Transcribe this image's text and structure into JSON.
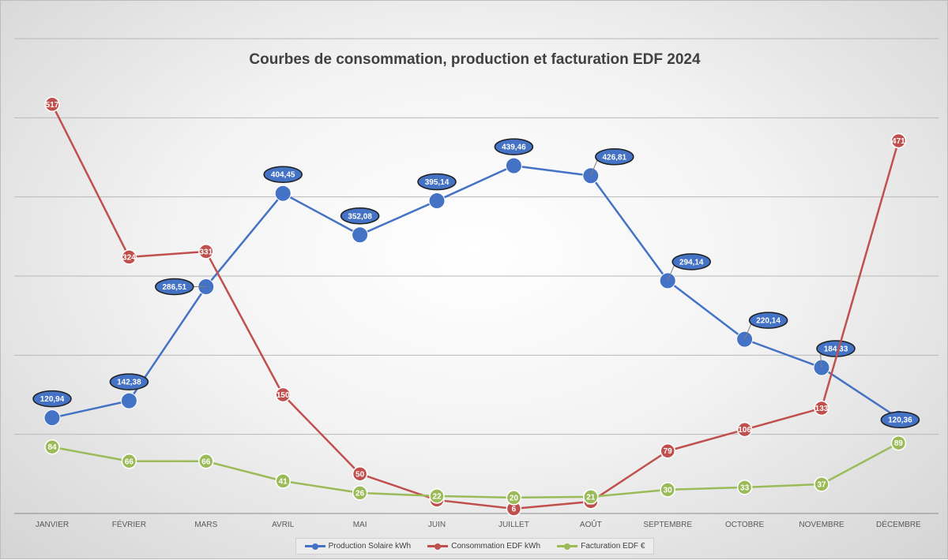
{
  "chart_data": {
    "type": "line",
    "title": "Courbes de consommation, production et facturation EDF 2024",
    "categories": [
      "JANVIER",
      "FÉVRIER",
      "MARS",
      "AVRIL",
      "MAI",
      "JUIN",
      "JUILLET",
      "AOÛT",
      "SEPTEMBRE",
      "OCTOBRE",
      "NOVEMBRE",
      "DÉCEMBRE"
    ],
    "series": [
      {
        "name": "Production Solaire kWh",
        "color": "#4472c4",
        "values": [
          120.94,
          142.38,
          286.51,
          404.45,
          352.08,
          395.14,
          439.46,
          426.81,
          294.14,
          220.14,
          184.33,
          120.36
        ],
        "labels": [
          "120,94",
          "142,38",
          "286,51",
          "404,45",
          "352,08",
          "395,14",
          "439,46",
          "426,81",
          "294,14",
          "220,14",
          "184,33",
          "120,36"
        ]
      },
      {
        "name": "Consommation EDF kWh",
        "color": "#c0504d",
        "values": [
          517,
          324,
          331,
          150,
          50,
          17,
          6,
          15,
          79,
          106,
          133,
          471
        ],
        "labels": [
          "517",
          "324",
          "331",
          "150",
          "50",
          "17",
          "6",
          "15",
          "79",
          "106",
          "133",
          "471"
        ]
      },
      {
        "name": "Facturation EDF €",
        "color": "#9bbb59",
        "values": [
          84,
          66,
          66,
          41,
          26,
          22,
          20,
          21,
          30,
          33,
          37,
          89
        ],
        "labels": [
          "84",
          "66",
          "66",
          "41",
          "26",
          "22",
          "20",
          "21",
          "30",
          "33",
          "37",
          "89"
        ]
      }
    ],
    "ylim": [
      0,
      600
    ],
    "grid": true,
    "legend_position": "bottom"
  }
}
